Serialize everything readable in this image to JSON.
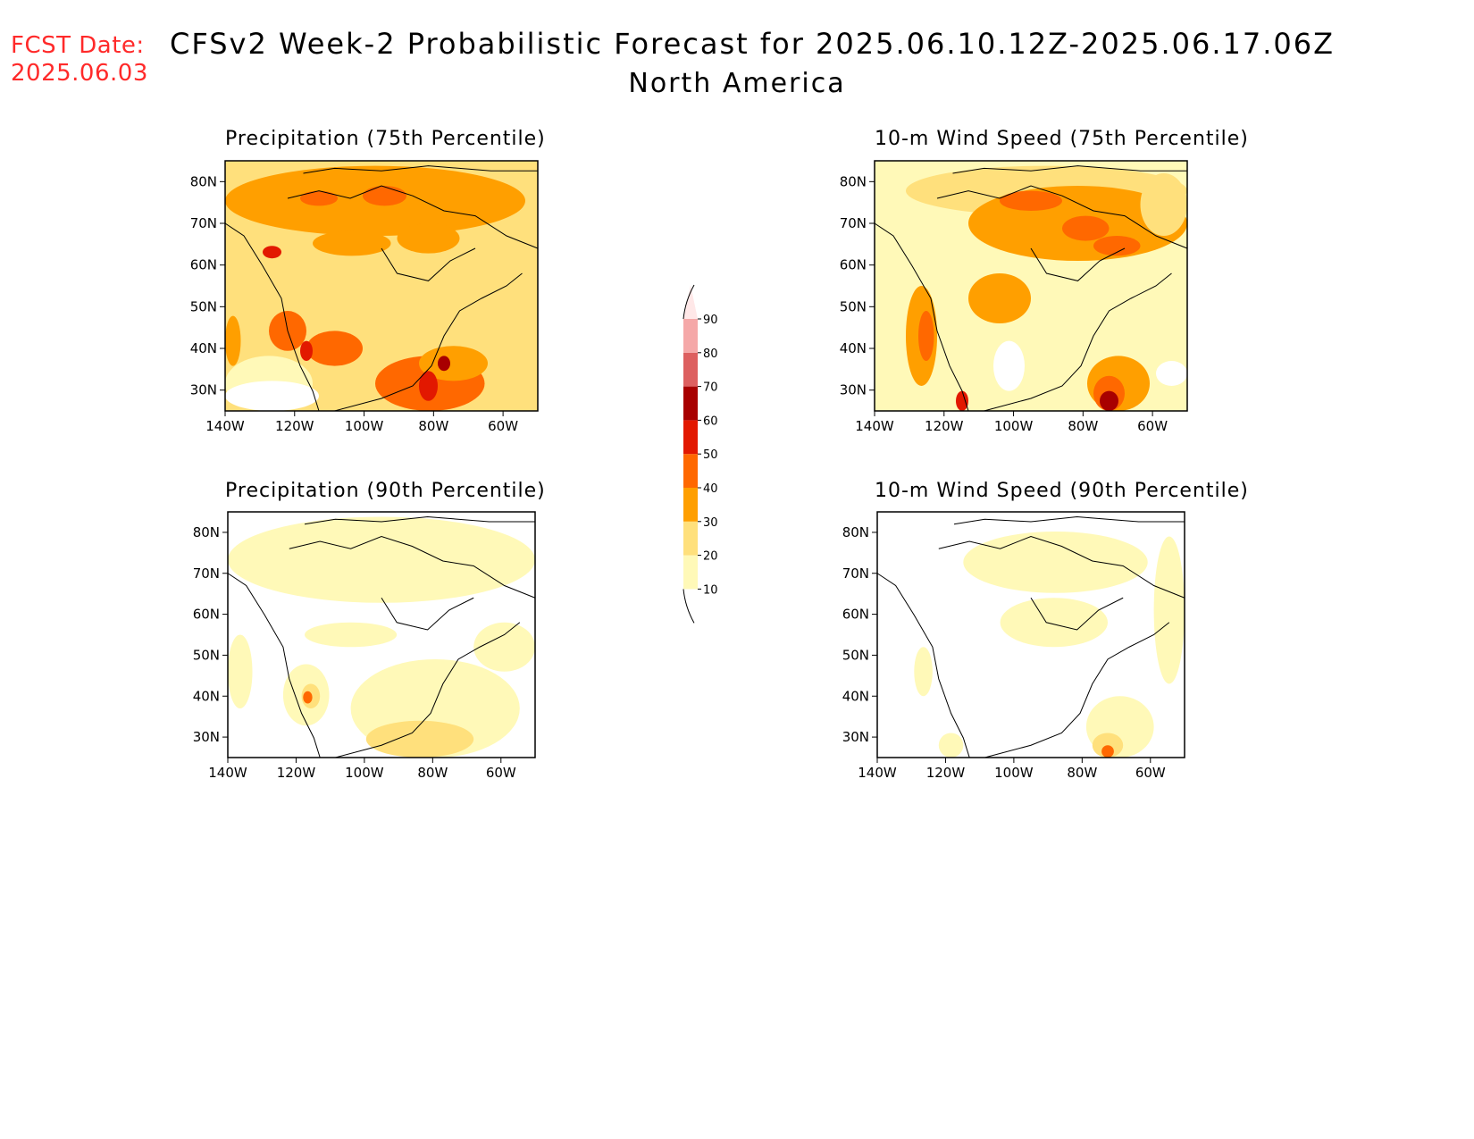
{
  "header": {
    "fcst_label": "FCST Date:",
    "fcst_date": "2025.06.03",
    "title": "CFSv2 Week-2 Probabilistic Forecast for 2025.06.10.12Z-2025.06.17.06Z",
    "region": "North America",
    "fcst_color": "#ff2a2a"
  },
  "panels": [
    {
      "id": "precip-75",
      "title": "Precipitation (75th Percentile)"
    },
    {
      "id": "wind-75",
      "title": "10-m Wind Speed (75th Percentile)"
    },
    {
      "id": "precip-90",
      "title": "Precipitation (90th Percentile)"
    },
    {
      "id": "wind-90",
      "title": "10-m Wind Speed (90th Percentile)"
    }
  ],
  "axes": {
    "lon_ticks": [
      "140W",
      "120W",
      "100W",
      "80W",
      "60W"
    ],
    "lat_ticks": [
      "80N",
      "70N",
      "60N",
      "50N",
      "40N",
      "30N"
    ],
    "lon_range": [
      -140,
      -50
    ],
    "lat_range": [
      25,
      85
    ]
  },
  "colorbar": {
    "levels": [
      "10",
      "20",
      "30",
      "40",
      "50",
      "60",
      "70",
      "80",
      "90"
    ],
    "colors": [
      "#fff9b8",
      "#ffe07c",
      "#ff9f00",
      "#ff6800",
      "#e21800",
      "#a80000",
      "#dd6060",
      "#f5a8a8",
      "#ffe8e8"
    ]
  }
}
